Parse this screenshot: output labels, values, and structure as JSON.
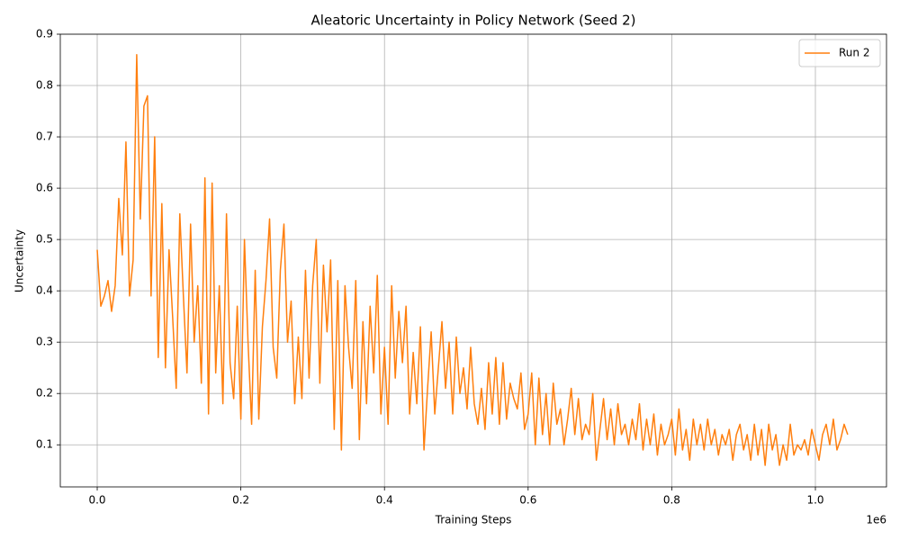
{
  "chart_data": {
    "type": "line",
    "title": "Aleatoric Uncertainty in Policy Network (Seed 2)",
    "xlabel": "Training Steps",
    "ylabel": "Uncertainty",
    "x_offset_label": "1e6",
    "x": [
      0,
      5000,
      10000,
      15000,
      20000,
      25000,
      30000,
      35000,
      40000,
      45000,
      50000,
      55000,
      60000,
      65000,
      70000,
      75000,
      80000,
      85000,
      90000,
      95000,
      100000,
      105000,
      110000,
      115000,
      120000,
      125000,
      130000,
      135000,
      140000,
      145000,
      150000,
      155000,
      160000,
      165000,
      170000,
      175000,
      180000,
      185000,
      190000,
      195000,
      200000,
      205000,
      210000,
      215000,
      220000,
      225000,
      230000,
      235000,
      240000,
      245000,
      250000,
      255000,
      260000,
      265000,
      270000,
      275000,
      280000,
      285000,
      290000,
      295000,
      300000,
      305000,
      310000,
      315000,
      320000,
      325000,
      330000,
      335000,
      340000,
      345000,
      350000,
      355000,
      360000,
      365000,
      370000,
      375000,
      380000,
      385000,
      390000,
      395000,
      400000,
      405000,
      410000,
      415000,
      420000,
      425000,
      430000,
      435000,
      440000,
      445000,
      450000,
      455000,
      460000,
      465000,
      470000,
      475000,
      480000,
      485000,
      490000,
      495000,
      500000,
      505000,
      510000,
      515000,
      520000,
      525000,
      530000,
      535000,
      540000,
      545000,
      550000,
      555000,
      560000,
      565000,
      570000,
      575000,
      580000,
      585000,
      590000,
      595000,
      600000,
      605000,
      610000,
      615000,
      620000,
      625000,
      630000,
      635000,
      640000,
      645000,
      650000,
      655000,
      660000,
      665000,
      670000,
      675000,
      680000,
      685000,
      690000,
      695000,
      700000,
      705000,
      710000,
      715000,
      720000,
      725000,
      730000,
      735000,
      740000,
      745000,
      750000,
      755000,
      760000,
      765000,
      770000,
      775000,
      780000,
      785000,
      790000,
      795000,
      800000,
      805000,
      810000,
      815000,
      820000,
      825000,
      830000,
      835000,
      840000,
      845000,
      850000,
      855000,
      860000,
      865000,
      870000,
      875000,
      880000,
      885000,
      890000,
      895000,
      900000,
      905000,
      910000,
      915000,
      920000,
      925000,
      930000,
      935000,
      940000,
      945000,
      950000,
      955000,
      960000,
      965000,
      970000,
      975000,
      980000,
      985000,
      990000,
      995000,
      1000000,
      1005000,
      1010000,
      1015000,
      1020000,
      1025000,
      1030000,
      1035000,
      1040000,
      1045000
    ],
    "series": [
      {
        "name": "Run 2",
        "color": "#ff7f0e",
        "values": [
          0.48,
          0.37,
          0.39,
          0.42,
          0.36,
          0.41,
          0.58,
          0.47,
          0.69,
          0.39,
          0.46,
          0.86,
          0.54,
          0.76,
          0.78,
          0.39,
          0.7,
          0.27,
          0.57,
          0.25,
          0.48,
          0.35,
          0.21,
          0.55,
          0.39,
          0.24,
          0.53,
          0.3,
          0.41,
          0.22,
          0.62,
          0.16,
          0.61,
          0.24,
          0.41,
          0.18,
          0.55,
          0.26,
          0.19,
          0.37,
          0.15,
          0.5,
          0.3,
          0.14,
          0.44,
          0.15,
          0.33,
          0.42,
          0.54,
          0.29,
          0.23,
          0.44,
          0.53,
          0.3,
          0.38,
          0.18,
          0.31,
          0.19,
          0.44,
          0.23,
          0.41,
          0.5,
          0.22,
          0.45,
          0.32,
          0.46,
          0.13,
          0.42,
          0.09,
          0.41,
          0.29,
          0.21,
          0.42,
          0.11,
          0.34,
          0.18,
          0.37,
          0.24,
          0.43,
          0.16,
          0.29,
          0.14,
          0.41,
          0.23,
          0.36,
          0.26,
          0.37,
          0.16,
          0.28,
          0.18,
          0.33,
          0.09,
          0.21,
          0.32,
          0.16,
          0.25,
          0.34,
          0.21,
          0.3,
          0.16,
          0.31,
          0.2,
          0.25,
          0.17,
          0.29,
          0.18,
          0.14,
          0.21,
          0.13,
          0.26,
          0.16,
          0.27,
          0.14,
          0.26,
          0.15,
          0.22,
          0.19,
          0.17,
          0.24,
          0.13,
          0.16,
          0.24,
          0.1,
          0.23,
          0.12,
          0.2,
          0.1,
          0.22,
          0.14,
          0.17,
          0.1,
          0.15,
          0.21,
          0.12,
          0.19,
          0.11,
          0.14,
          0.12,
          0.2,
          0.07,
          0.13,
          0.19,
          0.11,
          0.17,
          0.1,
          0.18,
          0.12,
          0.14,
          0.1,
          0.15,
          0.11,
          0.18,
          0.09,
          0.15,
          0.1,
          0.16,
          0.08,
          0.14,
          0.1,
          0.12,
          0.15,
          0.08,
          0.17,
          0.09,
          0.13,
          0.07,
          0.15,
          0.1,
          0.14,
          0.09,
          0.15,
          0.1,
          0.13,
          0.08,
          0.12,
          0.1,
          0.13,
          0.07,
          0.12,
          0.14,
          0.09,
          0.12,
          0.07,
          0.14,
          0.08,
          0.13,
          0.06,
          0.14,
          0.09,
          0.12,
          0.06,
          0.1,
          0.07,
          0.14,
          0.08,
          0.1,
          0.09,
          0.11,
          0.08,
          0.13,
          0.1,
          0.07,
          0.12,
          0.14,
          0.1,
          0.15,
          0.09,
          0.11,
          0.14,
          0.12
        ]
      }
    ],
    "xlim": [
      -51400,
      1099000
    ],
    "xticks": [
      {
        "value": 0,
        "label": "0.0"
      },
      {
        "value": 200000,
        "label": "0.2"
      },
      {
        "value": 400000,
        "label": "0.4"
      },
      {
        "value": 600000,
        "label": "0.6"
      },
      {
        "value": 800000,
        "label": "0.8"
      },
      {
        "value": 1000000,
        "label": "1.0"
      }
    ],
    "ylim": [
      0.018,
      0.9
    ],
    "yticks": [
      0.1,
      0.2,
      0.3,
      0.4,
      0.5,
      0.6,
      0.7,
      0.8,
      0.9
    ],
    "grid": true,
    "legend": "upper right"
  }
}
